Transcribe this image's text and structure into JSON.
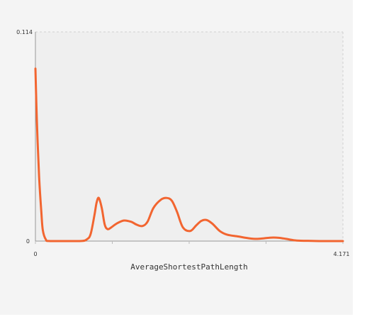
{
  "chart_data": {
    "type": "line",
    "title": "",
    "xlabel": "AverageShortestPathLength",
    "ylabel": "",
    "xlim": [
      0,
      4.171
    ],
    "ylim": [
      0,
      0.114
    ],
    "x_tick_labels": [
      "0",
      "4.171"
    ],
    "y_tick_labels": [
      "0",
      "0.114"
    ],
    "grid": false,
    "legend": "none",
    "line_color": "#f26530",
    "series": [
      {
        "x": [
          0,
          0.02,
          0.05,
          0.08,
          0.1,
          0.14,
          0.2,
          0.6,
          0.7,
          0.75,
          0.8,
          0.83,
          0.86,
          0.9,
          0.94,
          0.98,
          1.03,
          1.1,
          1.2,
          1.3,
          1.37,
          1.45,
          1.52,
          1.6,
          1.7,
          1.78,
          1.85,
          1.92,
          2.0,
          2.1,
          2.18,
          2.25,
          2.32,
          2.4,
          2.5,
          2.6,
          2.75,
          2.9,
          3.0,
          3.1,
          3.2,
          3.3,
          3.4,
          3.5,
          3.6,
          3.75,
          3.9,
          4.171
        ],
        "y": [
          0.094,
          0.065,
          0.035,
          0.016,
          0.006,
          0.001,
          0,
          0,
          0.001,
          0.004,
          0.014,
          0.021,
          0.0235,
          0.018,
          0.009,
          0.0065,
          0.0075,
          0.0095,
          0.0112,
          0.0105,
          0.009,
          0.0082,
          0.0105,
          0.018,
          0.0225,
          0.0235,
          0.022,
          0.016,
          0.0075,
          0.0055,
          0.0085,
          0.011,
          0.0115,
          0.0095,
          0.0055,
          0.0035,
          0.0025,
          0.0015,
          0.0012,
          0.0015,
          0.0019,
          0.0018,
          0.0012,
          0.0005,
          0.0002,
          0.0001,
          0,
          0
        ]
      }
    ]
  }
}
